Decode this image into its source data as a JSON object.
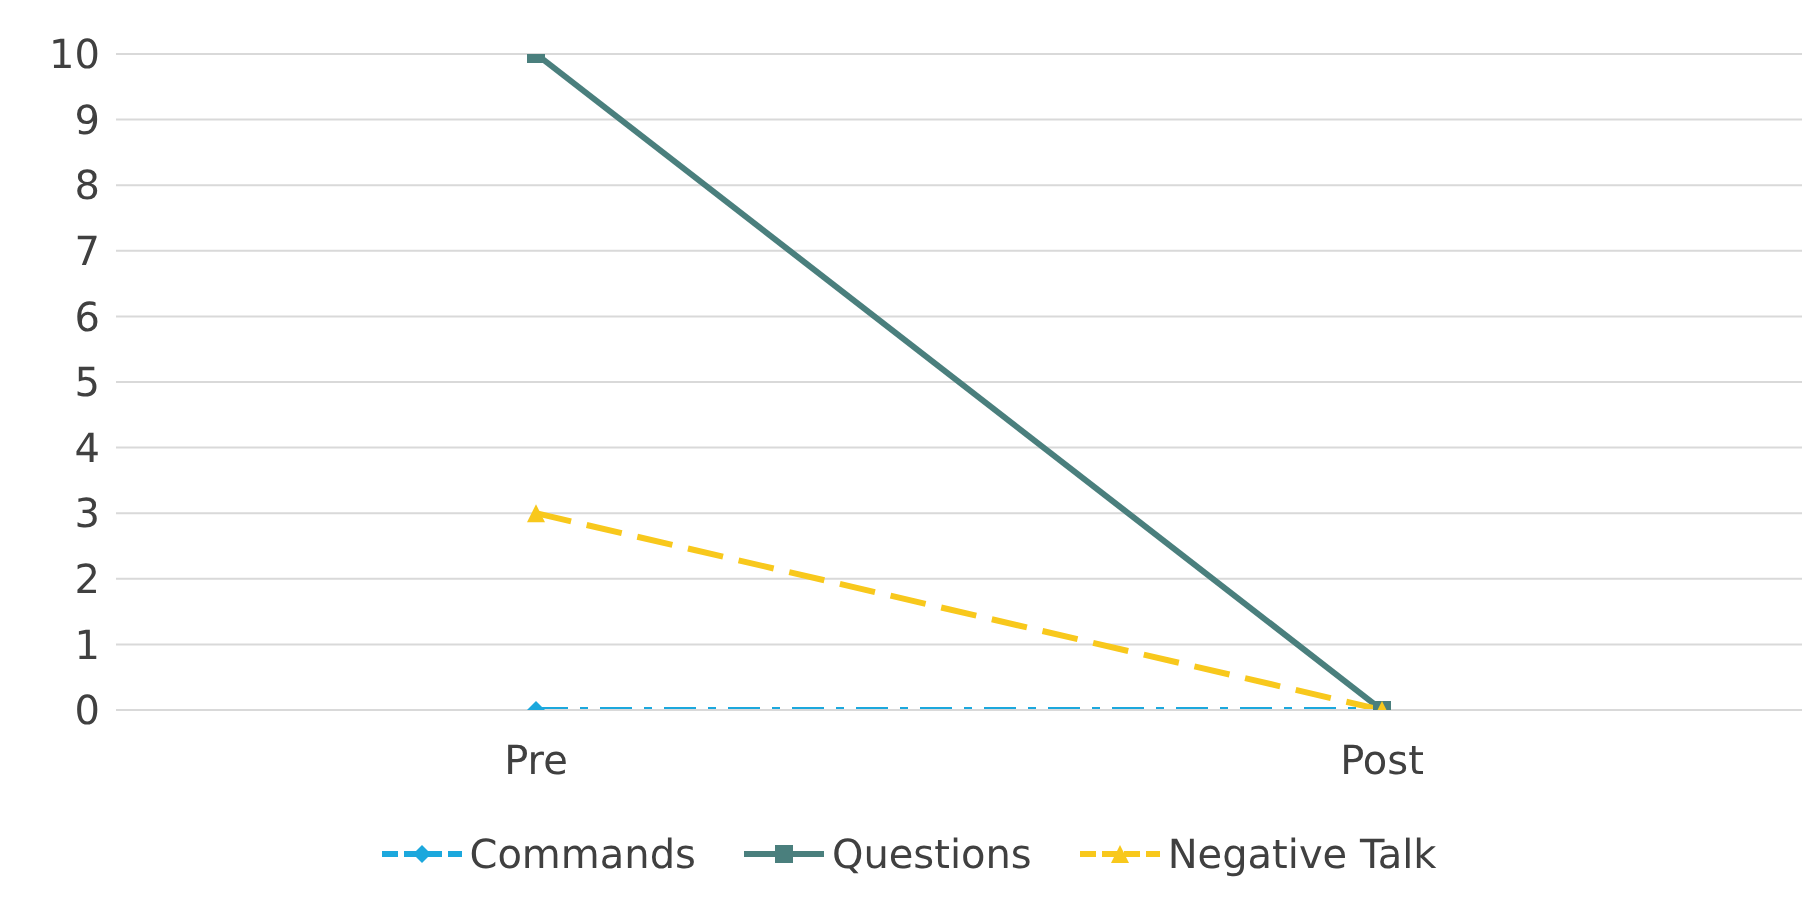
{
  "chart_data": {
    "type": "line",
    "categories": [
      "Pre",
      "Post"
    ],
    "series": [
      {
        "name": "Commands",
        "color": "#1ca8dd",
        "values": [
          0,
          0
        ],
        "marker": "diamond",
        "line_style": "dashed"
      },
      {
        "name": "Questions",
        "color": "#4a7f7d",
        "values": [
          10,
          0
        ],
        "marker": "square",
        "line_style": "solid"
      },
      {
        "name": "Negative Talk",
        "color": "#f8c81c",
        "values": [
          3,
          0
        ],
        "marker": "triangle",
        "line_style": "dashed"
      }
    ],
    "ylim": [
      0,
      10
    ],
    "yticks": [
      0,
      1,
      2,
      3,
      4,
      5,
      6,
      7,
      8,
      9,
      10
    ],
    "grid": "y",
    "legend": "bottom"
  }
}
